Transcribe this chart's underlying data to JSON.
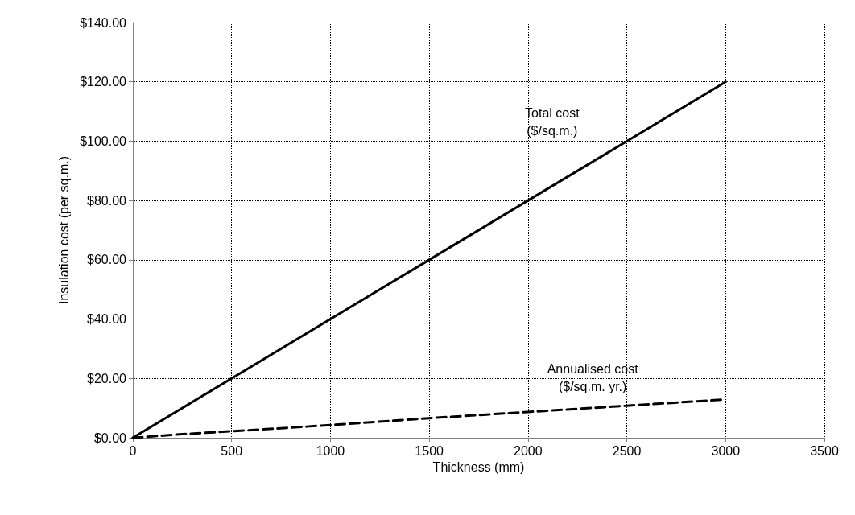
{
  "chart_data": {
    "type": "line",
    "xlabel": "Thickness (mm)",
    "ylabel": "Insulation cost (per sq.m.)",
    "xlim": [
      0,
      3500
    ],
    "xticks": [
      0,
      500,
      1000,
      1500,
      2000,
      2500,
      3000,
      3500
    ],
    "ylim": [
      0,
      140
    ],
    "yticks": [
      {
        "value": 0,
        "label": "$0.00"
      },
      {
        "value": 20,
        "label": "$20.00"
      },
      {
        "value": 40,
        "label": "$40.00"
      },
      {
        "value": 60,
        "label": "$60.00"
      },
      {
        "value": 80,
        "label": "$80.00"
      },
      {
        "value": 100,
        "label": "$100.00"
      },
      {
        "value": 120,
        "label": "$120.00"
      },
      {
        "value": 140,
        "label": "$140.00"
      }
    ],
    "grid": true,
    "legend": false,
    "marker": "none",
    "series": [
      {
        "name": "Total cost\n($/sq.m.)",
        "color": "#000000",
        "line_style": "solid",
        "x": [
          0,
          500,
          1000,
          1500,
          2000,
          2500,
          3000
        ],
        "values": [
          0,
          20,
          40,
          60,
          80,
          100,
          120
        ]
      },
      {
        "name": "Annualised cost\n($/sq.m. yr.)",
        "color": "#000000",
        "line_style": "dashed",
        "x": [
          0,
          250,
          500,
          750,
          1000,
          1500,
          2000,
          2500,
          3000
        ],
        "values": [
          0,
          1.2,
          2.2,
          3.2,
          4.3,
          6.6,
          8.7,
          10.8,
          12.9
        ]
      }
    ]
  }
}
